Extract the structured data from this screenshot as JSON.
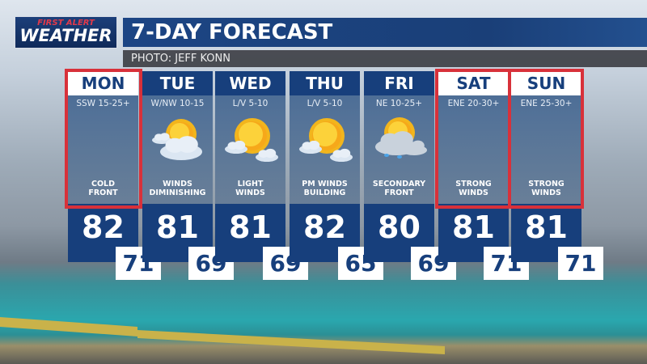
{
  "logo": {
    "line1": "FIRST ALERT",
    "line2": "WEATHER"
  },
  "header": {
    "title": "7-DAY FORECAST",
    "photo_credit": "PHOTO:  JEFF KONN"
  },
  "colors": {
    "navy": "#173f7c",
    "highlight": "#d8313a",
    "low_box": "#ffffff"
  },
  "days": [
    {
      "day": "MON",
      "wind": "SSW 15-25+",
      "icon": "none",
      "desc1": "COLD",
      "desc2": "FRONT",
      "high": "82",
      "low": "71",
      "highlighted": true
    },
    {
      "day": "TUE",
      "wind": "W/NW 10-15",
      "icon": "partly-cloudy-icon",
      "desc1": "WINDS",
      "desc2": "DIMINISHING",
      "high": "81",
      "low": "69",
      "highlighted": false
    },
    {
      "day": "WED",
      "wind": "L/V 5-10",
      "icon": "mostly-sunny-icon",
      "desc1": "LIGHT",
      "desc2": "WINDS",
      "high": "81",
      "low": "69",
      "highlighted": false
    },
    {
      "day": "THU",
      "wind": "L/V 5-10",
      "icon": "mostly-sunny-icon",
      "desc1": "PM WINDS",
      "desc2": "BUILDING",
      "high": "82",
      "low": "65",
      "highlighted": false
    },
    {
      "day": "FRI",
      "wind": "NE 10-25+",
      "icon": "sun-cloud-showers-icon",
      "desc1": "SECONDARY",
      "desc2": "FRONT",
      "high": "80",
      "low": "69",
      "highlighted": false
    },
    {
      "day": "SAT",
      "wind": "ENE 20-30+",
      "icon": "none",
      "desc1": "STRONG",
      "desc2": "WINDS",
      "high": "81",
      "low": "71",
      "highlighted": true
    },
    {
      "day": "SUN",
      "wind": "ENE 25-30+",
      "icon": "none",
      "desc1": "STRONG",
      "desc2": "WINDS",
      "high": "81",
      "low": "71",
      "highlighted": true
    }
  ]
}
